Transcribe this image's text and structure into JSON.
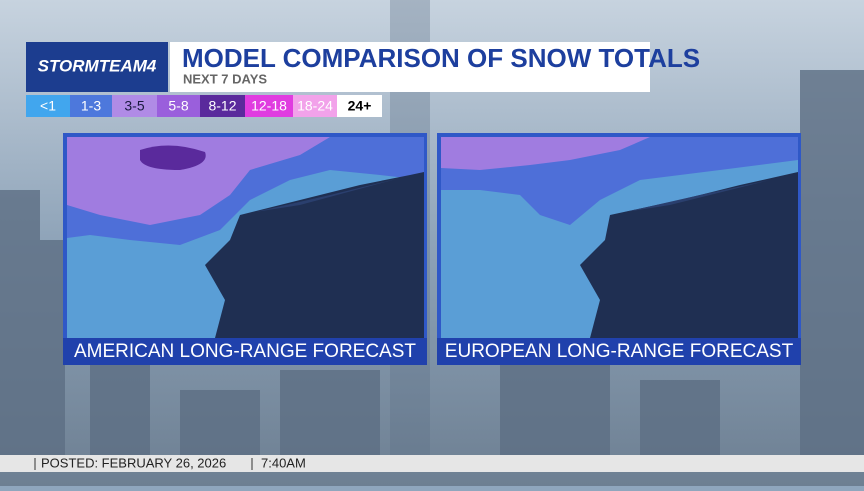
{
  "header": {
    "logo": "STORMTEAM4",
    "title": "MODEL COMPARISON OF SNOW TOTALS",
    "subtitle": "NEXT 7 DAYS"
  },
  "legend": [
    {
      "label": "<1",
      "color": "#41a6ee",
      "text_color": "#ffffff"
    },
    {
      "label": "1-3",
      "color": "#4d78dc",
      "text_color": "#ffffff"
    },
    {
      "label": "3-5",
      "color": "#b08be6",
      "text_color": "#1a1a40"
    },
    {
      "label": "5-8",
      "color": "#9a5fdc",
      "text_color": "#ffffff"
    },
    {
      "label": "8-12",
      "color": "#5a2a9c",
      "text_color": "#ffffff"
    },
    {
      "label": "12-18",
      "color": "#e03ce0",
      "text_color": "#ffffff"
    },
    {
      "label": "18-24",
      "color": "#f2a2ea",
      "text_color": "#ffffff"
    },
    {
      "label": "24+",
      "color": "#ffffff",
      "text_color": "#000000"
    }
  ],
  "panels": [
    {
      "label": "AMERICAN LONG-RANGE FORECAST"
    },
    {
      "label": "EUROPEAN LONG-RANGE FORECAST"
    }
  ],
  "footer": {
    "posted": "POSTED: FEBRUARY 26, 2026",
    "time": "7:40AM"
  }
}
